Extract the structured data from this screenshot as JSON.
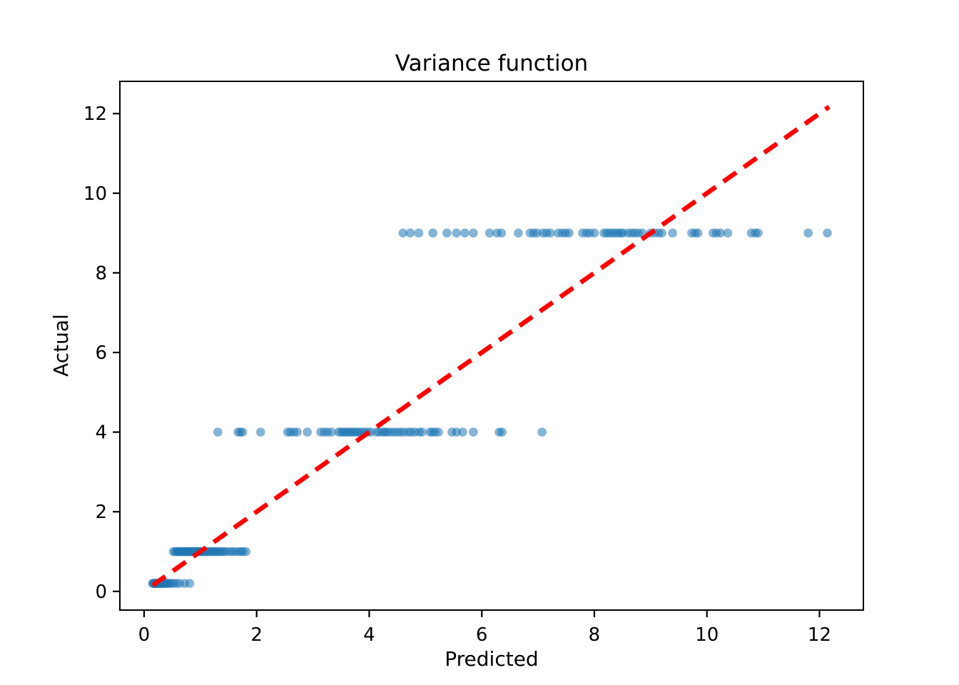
{
  "chart_data": {
    "type": "scatter",
    "title": "Variance function",
    "xlabel": "Predicted",
    "ylabel": "Actual",
    "xlim": [
      -0.43,
      12.78
    ],
    "ylim": [
      -0.47,
      12.81
    ],
    "xticks": [
      0,
      2,
      4,
      6,
      8,
      10,
      12
    ],
    "yticks": [
      0,
      2,
      4,
      6,
      8,
      10,
      12
    ],
    "grid": false,
    "legend": "none",
    "marker_color": "#1f77b4",
    "marker_opacity": 0.55,
    "marker_radius": 6.3,
    "line_color": "#ff0000",
    "line_dash": "22 13",
    "line_width": 6.5,
    "series": [
      {
        "name": "scatter-actual-vs-predicted",
        "type": "scatter",
        "bands": [
          {
            "y": 0.2,
            "x": [
              0.15,
              0.16,
              0.18,
              0.19,
              0.2,
              0.21,
              0.22,
              0.23,
              0.24,
              0.25,
              0.26,
              0.27,
              0.28,
              0.3,
              0.31,
              0.33,
              0.34,
              0.36,
              0.38,
              0.4,
              0.42,
              0.45,
              0.48,
              0.52,
              0.57,
              0.63,
              0.72,
              0.81
            ]
          },
          {
            "y": 1,
            "x": [
              0.52,
              0.55,
              0.58,
              0.6,
              0.62,
              0.64,
              0.66,
              0.68,
              0.7,
              0.72,
              0.74,
              0.76,
              0.78,
              0.8,
              0.82,
              0.84,
              0.86,
              0.88,
              0.9,
              0.92,
              0.94,
              0.96,
              0.98,
              1.0,
              1.02,
              1.05,
              1.08,
              1.1,
              1.13,
              1.16,
              1.19,
              1.22,
              1.25,
              1.28,
              1.31,
              1.35,
              1.38,
              1.42,
              1.46,
              1.52,
              1.57,
              1.62,
              1.68,
              1.72,
              1.76,
              1.81
            ]
          },
          {
            "y": 4,
            "x": [
              1.31,
              1.67,
              1.71,
              1.75,
              2.07,
              2.55,
              2.6,
              2.66,
              2.72,
              2.9,
              3.14,
              3.2,
              3.26,
              3.33,
              3.46,
              3.5,
              3.54,
              3.58,
              3.62,
              3.66,
              3.7,
              3.74,
              3.78,
              3.82,
              3.87,
              3.92,
              3.97,
              4.03,
              4.13,
              4.18,
              4.24,
              4.28,
              4.32,
              4.38,
              4.44,
              4.5,
              4.56,
              4.62,
              4.69,
              4.75,
              4.81,
              4.89,
              4.94,
              5.08,
              5.12,
              5.17,
              5.23,
              5.47,
              5.55,
              5.66,
              5.85,
              6.31,
              6.36,
              7.07
            ]
          },
          {
            "y": 9,
            "x": [
              4.6,
              4.73,
              4.88,
              5.13,
              5.38,
              5.55,
              5.7,
              5.85,
              6.14,
              6.27,
              6.35,
              6.65,
              6.86,
              6.92,
              6.98,
              7.09,
              7.15,
              7.22,
              7.36,
              7.43,
              7.49,
              7.55,
              7.79,
              7.86,
              7.92,
              8.0,
              8.17,
              8.22,
              8.27,
              8.32,
              8.37,
              8.42,
              8.47,
              8.51,
              8.6,
              8.66,
              8.72,
              8.78,
              8.85,
              9.0,
              9.07,
              9.14,
              9.2,
              9.39,
              9.73,
              9.79,
              9.84,
              10.11,
              10.17,
              10.24,
              10.37,
              10.79,
              10.86,
              10.91,
              11.8,
              12.14
            ]
          }
        ]
      },
      {
        "name": "identity-line",
        "type": "line",
        "style": "dashed",
        "points": [
          [
            0.15,
            0.15
          ],
          [
            12.17,
            12.17
          ]
        ]
      }
    ]
  }
}
